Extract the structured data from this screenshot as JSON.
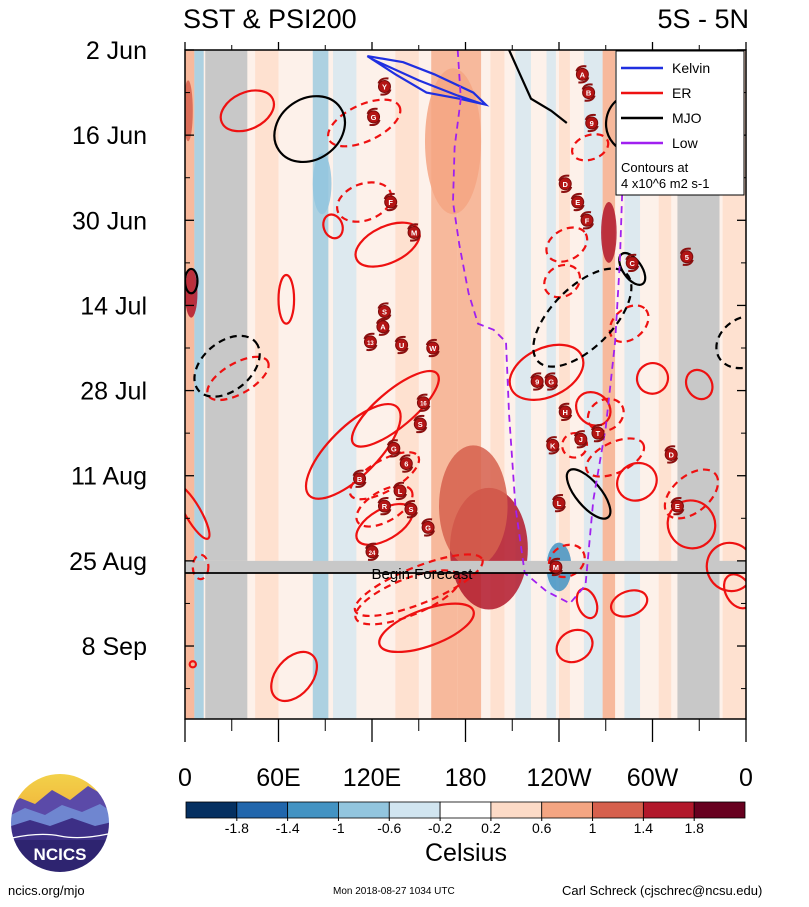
{
  "chart_data": {
    "type": "heatmap",
    "title_left": "SST & PSI200",
    "title_right": "5S - 5N",
    "x_tick_labels": [
      "0",
      "60E",
      "120E",
      "180",
      "120W",
      "60W",
      "0"
    ],
    "x_ticks_deg": [
      0,
      60,
      120,
      180,
      240,
      300,
      360
    ],
    "xlim_deg": [
      0,
      360
    ],
    "y_tick_labels": [
      "2 Jun",
      "16 Jun",
      "30 Jun",
      "14 Jul",
      "28 Jul",
      "11 Aug",
      "25 Aug",
      "8 Sep"
    ],
    "y_ticks_day": [
      0,
      14,
      28,
      42,
      56,
      70,
      84,
      98
    ],
    "ylim_day": [
      0,
      110
    ],
    "forecast_start_day": 86,
    "forecast_label": "Begin Forecast",
    "colorbar": {
      "label": "Celsius",
      "tick_labels": [
        "-1.8",
        "-1.4",
        "-1",
        "-0.6",
        "-0.2",
        "0.2",
        "0.6",
        "1",
        "1.4",
        "1.8"
      ],
      "levels": [
        -1.8,
        -1.4,
        -1.0,
        -0.6,
        -0.2,
        0.2,
        0.6,
        1.0,
        1.4,
        1.8
      ],
      "colors": [
        "#053061",
        "#2166ac",
        "#4393c3",
        "#92c5de",
        "#d1e5f0",
        "#ffffff",
        "#fddbc7",
        "#f4a582",
        "#d6604d",
        "#b2182b",
        "#67001f"
      ]
    },
    "legend": {
      "position": "top-right",
      "items": [
        {
          "label": "Kelvin",
          "color": "#1f2fe0"
        },
        {
          "label": "ER",
          "color": "#ee1111"
        },
        {
          "label": "MJO",
          "color": "#000000"
        },
        {
          "label": "Low",
          "color": "#a020f0"
        }
      ],
      "note_lines": [
        "Contours at",
        "4 x10^6 m2 s-1"
      ]
    },
    "missing_bands_deg": [
      {
        "lon": [
          13,
          40
        ],
        "day": [
          0,
          84
        ]
      },
      {
        "lon": [
          13,
          40
        ],
        "day": [
          84,
          110
        ]
      },
      {
        "lon": [
          316,
          343
        ],
        "day": [
          17,
          110
        ]
      }
    ],
    "anomaly_bands": [
      {
        "lon": [
          0,
          6
        ],
        "value": 0.8
      },
      {
        "lon": [
          6,
          12
        ],
        "value": -0.9
      },
      {
        "lon": [
          45,
          60
        ],
        "value": 0.5
      },
      {
        "lon": [
          82,
          92
        ],
        "value": -0.7
      },
      {
        "lon": [
          95,
          110
        ],
        "value": -0.4
      },
      {
        "lon": [
          135,
          150
        ],
        "value": 0.5
      },
      {
        "lon": [
          158,
          175
        ],
        "value": 0.9
      },
      {
        "lon": [
          175,
          190
        ],
        "value": 0.6
      },
      {
        "lon": [
          196,
          205
        ],
        "value": 0.4
      },
      {
        "lon": [
          212,
          222
        ],
        "value": -0.3
      },
      {
        "lon": [
          232,
          238
        ],
        "value": -0.6
      },
      {
        "lon": [
          240,
          247
        ],
        "value": 0.5
      },
      {
        "lon": [
          256,
          268
        ],
        "value": -0.5
      },
      {
        "lon": [
          268,
          276
        ],
        "value": 0.7
      },
      {
        "lon": [
          282,
          292
        ],
        "value": -0.4
      },
      {
        "lon": [
          304,
          312
        ],
        "value": 0.5
      },
      {
        "lon": [
          345,
          360
        ],
        "value": 0.5
      }
    ],
    "anomaly_patches": [
      {
        "lon": 195,
        "day": 82,
        "rlon": 25,
        "rday": 10,
        "value": 1.4
      },
      {
        "lon": 172,
        "day": 15,
        "rlon": 18,
        "rday": 12,
        "value": 0.8
      },
      {
        "lon": 272,
        "day": 30,
        "rlon": 5,
        "rday": 5,
        "value": 1.6
      },
      {
        "lon": 4,
        "day": 40,
        "rlon": 4,
        "rday": 4,
        "value": 1.6
      },
      {
        "lon": 185,
        "day": 75,
        "rlon": 22,
        "rday": 10,
        "value": 1.0
      },
      {
        "lon": 240,
        "day": 85,
        "rlon": 8,
        "rday": 4,
        "value": -1.2
      },
      {
        "lon": 88,
        "day": 22,
        "rlon": 6,
        "rday": 5,
        "value": -1.0
      },
      {
        "lon": 2,
        "day": 10,
        "rlon": 3,
        "rday": 5,
        "value": 1.2
      }
    ],
    "contours": [
      {
        "type": "Kelvin",
        "style": "solid",
        "points": [
          [
            117,
            1
          ],
          [
            135,
            4
          ],
          [
            155,
            7
          ],
          [
            176,
            8
          ],
          [
            193,
            9
          ],
          [
            185,
            7
          ],
          [
            160,
            4
          ],
          [
            140,
            2
          ],
          [
            117,
            1
          ]
        ]
      },
      {
        "type": "Kelvin",
        "style": "solid",
        "points": [
          [
            120,
            1.5
          ],
          [
            150,
            5
          ],
          [
            175,
            7.5
          ],
          [
            190,
            8.8
          ]
        ]
      },
      {
        "type": "ER",
        "style": "solid",
        "ellipse": [
          40,
          10,
          18,
          3,
          -25
        ]
      },
      {
        "type": "ER",
        "style": "solid",
        "ellipse": [
          130,
          32,
          22,
          3,
          -25
        ]
      },
      {
        "type": "ER",
        "style": "solid",
        "ellipse": [
          95,
          29,
          6,
          2,
          -20
        ]
      },
      {
        "type": "ER",
        "style": "solid",
        "ellipse": [
          65,
          41,
          5,
          4,
          0
        ]
      },
      {
        "type": "ER",
        "style": "solid",
        "ellipse": [
          108,
          66,
          40,
          4,
          -45
        ]
      },
      {
        "type": "ER",
        "style": "solid",
        "ellipse": [
          135,
          59,
          35,
          3,
          -40
        ]
      },
      {
        "type": "ER",
        "style": "solid",
        "ellipse": [
          128,
          78,
          20,
          2.5,
          -30
        ]
      },
      {
        "type": "ER",
        "style": "solid",
        "ellipse": [
          232,
          53,
          25,
          4,
          -25
        ]
      },
      {
        "type": "ER",
        "style": "solid",
        "ellipse": [
          262,
          59,
          10,
          3,
          -50
        ]
      },
      {
        "type": "ER",
        "style": "solid",
        "ellipse": [
          290,
          71,
          13,
          3,
          -30
        ]
      },
      {
        "type": "ER",
        "style": "solid",
        "ellipse": [
          325,
          78,
          15,
          4,
          -40
        ]
      },
      {
        "type": "ER",
        "style": "solid",
        "ellipse": [
          350,
          85,
          15,
          4,
          -30
        ]
      },
      {
        "type": "ER",
        "style": "solid",
        "ellipse": [
          330,
          55,
          8,
          2.5,
          -30
        ]
      },
      {
        "type": "ER",
        "style": "solid",
        "ellipse": [
          300,
          54,
          10,
          2.5,
          -30
        ]
      },
      {
        "type": "ER",
        "style": "solid",
        "ellipse": [
          5,
          76,
          5,
          5,
          -30
        ]
      },
      {
        "type": "ER",
        "style": "solid",
        "ellipse": [
          285,
          91,
          12,
          2,
          -20
        ]
      },
      {
        "type": "ER",
        "style": "solid",
        "ellipse": [
          258,
          91,
          6,
          2.5,
          -20
        ]
      },
      {
        "type": "ER",
        "style": "solid",
        "ellipse": [
          250,
          98,
          12,
          2.5,
          -30
        ]
      },
      {
        "type": "ER",
        "style": "solid",
        "ellipse": [
          355,
          89,
          8,
          3,
          -30
        ]
      },
      {
        "type": "ER",
        "style": "solid",
        "ellipse": [
          70,
          103,
          18,
          3,
          -50
        ]
      },
      {
        "type": "ER",
        "style": "solid",
        "ellipse": [
          155,
          95,
          32,
          3,
          -20
        ]
      },
      {
        "type": "ER",
        "style": "solid",
        "ellipse": [
          5,
          101,
          2,
          0.5,
          0
        ]
      },
      {
        "type": "ER",
        "style": "dashed",
        "ellipse": [
          115,
          12,
          25,
          3,
          -25
        ]
      },
      {
        "type": "ER",
        "style": "dashed",
        "ellipse": [
          115,
          25,
          18,
          3,
          -20
        ]
      },
      {
        "type": "ER",
        "style": "dashed",
        "ellipse": [
          245,
          32,
          14,
          2.5,
          -30
        ]
      },
      {
        "type": "ER",
        "style": "dashed",
        "ellipse": [
          242,
          38,
          12,
          2.5,
          -30
        ]
      },
      {
        "type": "ER",
        "style": "dashed",
        "ellipse": [
          285,
          45,
          14,
          2.5,
          -40
        ]
      },
      {
        "type": "ER",
        "style": "dashed",
        "ellipse": [
          34,
          54,
          22,
          2.5,
          -30
        ]
      },
      {
        "type": "ER",
        "style": "dashed",
        "ellipse": [
          128,
          70,
          25,
          2.5,
          -30
        ]
      },
      {
        "type": "ER",
        "style": "dashed",
        "ellipse": [
          128,
          75,
          20,
          2.5,
          -30
        ]
      },
      {
        "type": "ER",
        "style": "dashed",
        "ellipse": [
          150,
          88,
          44,
          3,
          -22
        ]
      },
      {
        "type": "ER",
        "style": "dashed",
        "ellipse": [
          143,
          90,
          36,
          3,
          -22
        ]
      },
      {
        "type": "ER",
        "style": "dashed",
        "ellipse": [
          276,
          67,
          20,
          2.5,
          -25
        ]
      },
      {
        "type": "ER",
        "style": "dashed",
        "ellipse": [
          325,
          73,
          20,
          3,
          -40
        ]
      },
      {
        "type": "ER",
        "style": "dashed",
        "ellipse": [
          245,
          84,
          12,
          2.5,
          -30
        ]
      },
      {
        "type": "ER",
        "style": "dashed",
        "ellipse": [
          260,
          16,
          12,
          2,
          -20
        ]
      },
      {
        "type": "ER",
        "style": "dashed",
        "ellipse": [
          10,
          85,
          5,
          2,
          0
        ]
      },
      {
        "type": "ER",
        "style": "dashed",
        "ellipse": [
          270,
          60,
          12,
          2.5,
          -30
        ]
      },
      {
        "type": "ER",
        "style": "dashed",
        "ellipse": [
          250,
          65,
          8,
          2,
          -30
        ]
      },
      {
        "type": "MJO",
        "style": "solid",
        "ellipse": [
          80,
          13,
          24,
          5,
          -35
        ]
      },
      {
        "type": "MJO",
        "style": "solid",
        "ellipse": [
          290,
          12,
          20,
          5,
          -40
        ]
      },
      {
        "type": "MJO",
        "style": "solid",
        "ellipse": [
          287,
          36,
          6,
          3,
          -35
        ]
      },
      {
        "type": "MJO",
        "style": "solid",
        "ellipse": [
          4,
          38,
          4,
          2,
          0
        ]
      },
      {
        "type": "MJO",
        "style": "solid",
        "ellipse": [
          259,
          73,
          8,
          5,
          -40
        ]
      },
      {
        "type": "MJO",
        "style": "solid",
        "points": [
          [
            208,
            0
          ],
          [
            215,
            4
          ],
          [
            222,
            8
          ],
          [
            235,
            10
          ],
          [
            245,
            12
          ]
        ]
      },
      {
        "type": "MJO",
        "style": "dashed",
        "ellipse": [
          255,
          44,
          40,
          5,
          -45
        ]
      },
      {
        "type": "MJO",
        "style": "dashed",
        "ellipse": [
          27,
          52,
          24,
          4,
          -40
        ]
      },
      {
        "type": "MJO",
        "style": "dashed",
        "ellipse": [
          360,
          48,
          20,
          4,
          -30
        ]
      },
      {
        "type": "Low",
        "style": "dashed",
        "points": [
          [
            175,
            0
          ],
          [
            177,
            8
          ],
          [
            173,
            16
          ],
          [
            172,
            25
          ],
          [
            176,
            32
          ],
          [
            182,
            40
          ],
          [
            188,
            45
          ],
          [
            198,
            46
          ],
          [
            206,
            48
          ],
          [
            208,
            60
          ],
          [
            212,
            75
          ],
          [
            218,
            86
          ],
          [
            232,
            89
          ],
          [
            247,
            91
          ],
          [
            257,
            88
          ],
          [
            262,
            74
          ],
          [
            270,
            62
          ],
          [
            276,
            48
          ],
          [
            279,
            35
          ],
          [
            281,
            20
          ],
          [
            283,
            0
          ]
        ]
      }
    ],
    "cyclone_markers": [
      {
        "label": "Y",
        "lon": 128,
        "day": 6
      },
      {
        "label": "G",
        "lon": 121,
        "day": 11
      },
      {
        "label": "A",
        "lon": 255,
        "day": 4
      },
      {
        "label": "B",
        "lon": 259,
        "day": 7
      },
      {
        "label": "9",
        "lon": 261,
        "day": 12
      },
      {
        "label": "D",
        "lon": 244,
        "day": 22
      },
      {
        "label": "F",
        "lon": 132,
        "day": 25
      },
      {
        "label": "E",
        "lon": 252,
        "day": 25
      },
      {
        "label": "F",
        "lon": 258,
        "day": 28
      },
      {
        "label": "M",
        "lon": 147,
        "day": 30
      },
      {
        "label": "C",
        "lon": 287,
        "day": 35
      },
      {
        "label": "5",
        "lon": 322,
        "day": 34
      },
      {
        "label": "S",
        "lon": 128,
        "day": 43
      },
      {
        "label": "A",
        "lon": 127,
        "day": 45.5
      },
      {
        "label": "13",
        "lon": 119,
        "day": 48
      },
      {
        "label": "U",
        "lon": 139,
        "day": 48.5
      },
      {
        "label": "W",
        "lon": 159,
        "day": 49
      },
      {
        "label": "9",
        "lon": 226,
        "day": 54.5
      },
      {
        "label": "G",
        "lon": 235,
        "day": 54.5
      },
      {
        "label": "16",
        "lon": 153,
        "day": 58
      },
      {
        "label": "S",
        "lon": 151,
        "day": 61.5
      },
      {
        "label": "H",
        "lon": 244,
        "day": 59.5
      },
      {
        "label": "T",
        "lon": 265,
        "day": 63
      },
      {
        "label": "J",
        "lon": 254,
        "day": 64
      },
      {
        "label": "K",
        "lon": 236,
        "day": 65
      },
      {
        "label": "G",
        "lon": 134,
        "day": 65.5
      },
      {
        "label": "D",
        "lon": 312,
        "day": 66.5
      },
      {
        "label": "6",
        "lon": 142,
        "day": 68
      },
      {
        "label": "B",
        "lon": 112,
        "day": 70.5
      },
      {
        "label": "L",
        "lon": 138,
        "day": 72.5
      },
      {
        "label": "R",
        "lon": 128,
        "day": 75
      },
      {
        "label": "S",
        "lon": 145,
        "day": 75.5
      },
      {
        "label": "L",
        "lon": 240,
        "day": 74.5
      },
      {
        "label": "E",
        "lon": 316,
        "day": 75
      },
      {
        "label": "G",
        "lon": 156,
        "day": 78.5
      },
      {
        "label": "24",
        "lon": 120,
        "day": 82.5
      },
      {
        "label": "M",
        "lon": 238,
        "day": 85
      }
    ]
  },
  "logo": {
    "text": "NCICS"
  },
  "footer": {
    "left": "ncics.org/mjo",
    "center": "Mon 2018-08-27 1034 UTC",
    "right": "Carl Schreck (cjschrec@ncsu.edu)"
  }
}
